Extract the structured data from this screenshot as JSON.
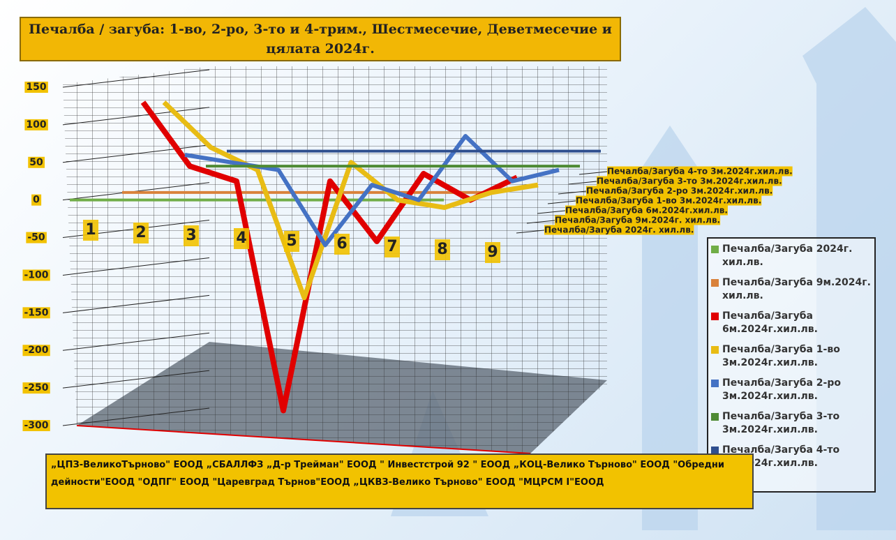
{
  "chart_data": {
    "type": "line",
    "title": "Печалба / загуба: 1-во, 2-ро, 3-то и 4-трим., Шестмесечие, Деветмесечие и цялата 2024г.",
    "categories": [
      "1",
      "2",
      "3",
      "4",
      "5",
      "6",
      "7",
      "8",
      "9"
    ],
    "series": [
      {
        "name": "Печалба/Загуба 2024г. хил.лв.",
        "color": "#70ad47",
        "values": [
          0,
          0,
          0,
          0,
          0,
          0,
          0,
          0,
          0
        ]
      },
      {
        "name": "Печалба/Загуба 9м.2024г. хил.лв.",
        "color": "#d9823b",
        "values": [
          10,
          10,
          10,
          10,
          10,
          10,
          10,
          10,
          10
        ]
      },
      {
        "name": "Печалба/Загуба 6м.2024г.хил.лв.",
        "color": "#e00000",
        "values": [
          130,
          45,
          25,
          -280,
          25,
          -55,
          35,
          0,
          30
        ]
      },
      {
        "name": "Печалба/Загуба 1-во 3м.2024г.хил.лв.",
        "color": "#e8bc14",
        "values": [
          130,
          70,
          40,
          -130,
          50,
          0,
          -10,
          10,
          20
        ]
      },
      {
        "name": "Печалба/Загуба 2-ро 3м.2024г.хил.лв.",
        "color": "#4472c4",
        "values": [
          60,
          50,
          40,
          -60,
          20,
          0,
          85,
          25,
          40
        ]
      },
      {
        "name": "Печалба/Загуба 3-то 3м.2024г.хил.лв.",
        "color": "#4e8a34",
        "values": [
          45,
          45,
          45,
          45,
          45,
          45,
          45,
          45,
          45
        ]
      },
      {
        "name": "Печалба/Загуба 4-то 3м.2024г.хил.лв.",
        "color": "#2f4f8f",
        "values": [
          65,
          65,
          65,
          65,
          65,
          65,
          65,
          65,
          65
        ]
      }
    ],
    "ylim": [
      -300,
      150
    ],
    "yticks": [
      -300,
      -250,
      -200,
      -150,
      -100,
      -50,
      0,
      50,
      100,
      150
    ],
    "grid": true,
    "footnote": "„ЦПЗ-ВеликоТърново\" ЕООД „СБАЛЛФЗ „Д-р Трейман\" ЕООД \" Инвестстрой 92 \" ЕООД „КОЦ-Велико Търново\" ЕООД \"Обредни дейности\"ЕООД \"ОДПГ\" ЕООД \"Царевград Търнов\"ЕООД „ЦКВЗ-Велико Търново\" ЕООД \"МЦРСМ I\"ЕООД"
  }
}
